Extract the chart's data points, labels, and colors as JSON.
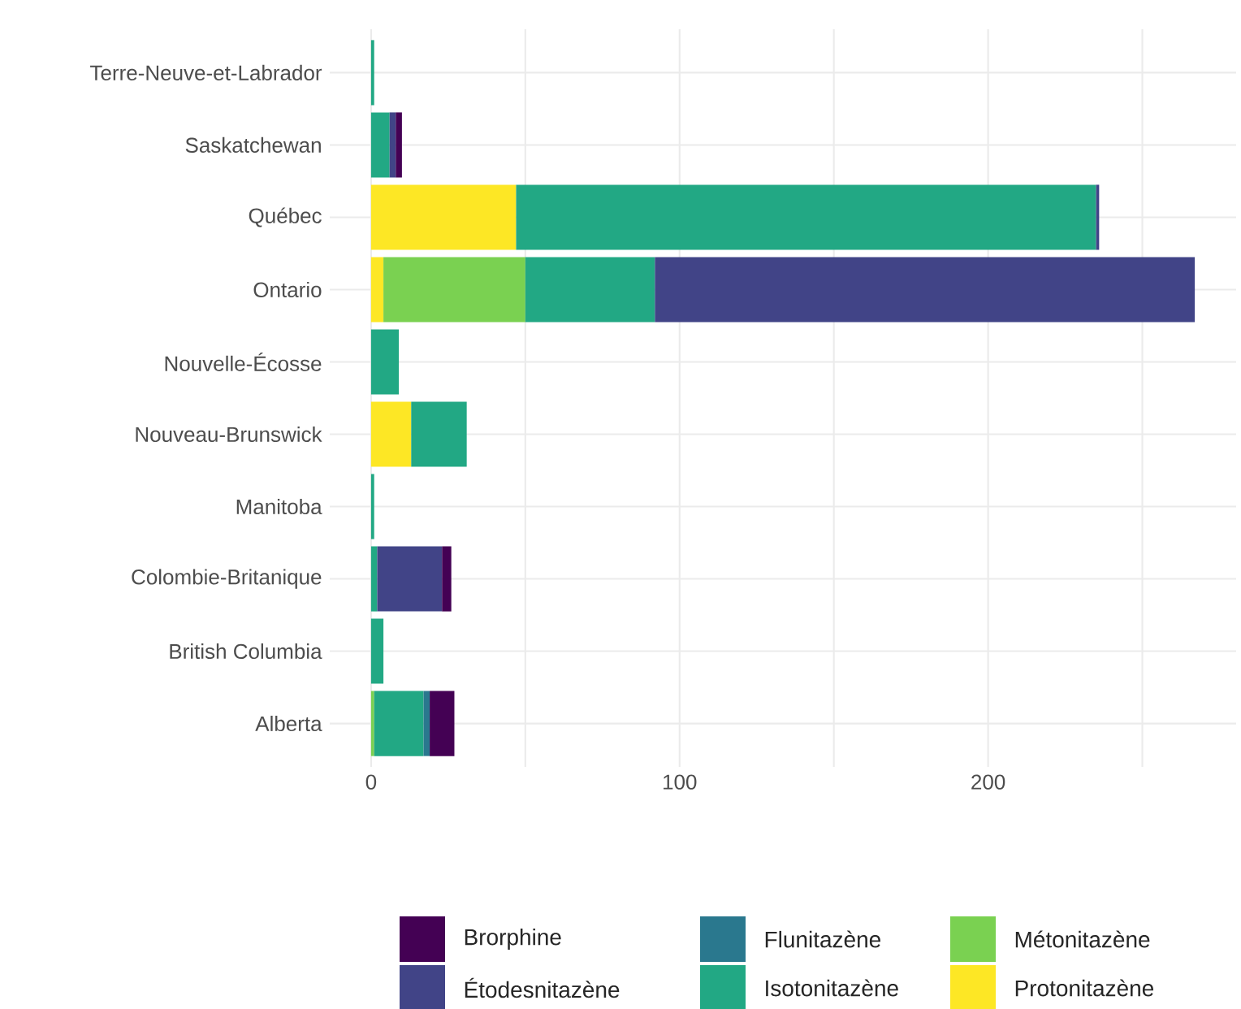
{
  "chart_data": {
    "type": "bar",
    "orientation": "horizontal",
    "stacked": true,
    "categories": [
      "Terre-Neuve-et-Labrador",
      "Saskatchewan",
      "Québec",
      "Ontario",
      "Nouvelle-Écosse",
      "Nouveau-Brunswick",
      "Manitoba",
      "Colombie-Britanique",
      "British Columbia",
      "Alberta"
    ],
    "series": [
      {
        "name": "Protonitazène",
        "color": "#fde725",
        "values": [
          null,
          null,
          47,
          4,
          null,
          13,
          null,
          null,
          null,
          null
        ]
      },
      {
        "name": "Métonitazène",
        "color": "#7ad151",
        "values": [
          null,
          null,
          null,
          46,
          null,
          null,
          null,
          null,
          null,
          1
        ]
      },
      {
        "name": "Isotonitazène",
        "color": "#22a884",
        "values": [
          1,
          6,
          188,
          42,
          9,
          18,
          1,
          2,
          4,
          16
        ]
      },
      {
        "name": "Flunitazène",
        "color": "#2a788e",
        "values": [
          null,
          null,
          null,
          null,
          null,
          null,
          null,
          null,
          null,
          2
        ]
      },
      {
        "name": "Étodesnitazène",
        "color": "#414487",
        "values": [
          null,
          2,
          1,
          175,
          null,
          null,
          null,
          21,
          null,
          null
        ]
      },
      {
        "name": "Brorphine",
        "color": "#440154",
        "values": [
          null,
          2,
          null,
          null,
          null,
          null,
          null,
          3,
          null,
          8
        ]
      }
    ],
    "xlim": [
      -13.4,
      280.4
    ],
    "xticks": [
      0,
      {
        "value": 50,
        "label": null
      },
      100,
      {
        "value": 150,
        "label": null
      },
      200,
      {
        "value": 250,
        "label": null
      }
    ],
    "grid": true,
    "legend": "bottom"
  }
}
